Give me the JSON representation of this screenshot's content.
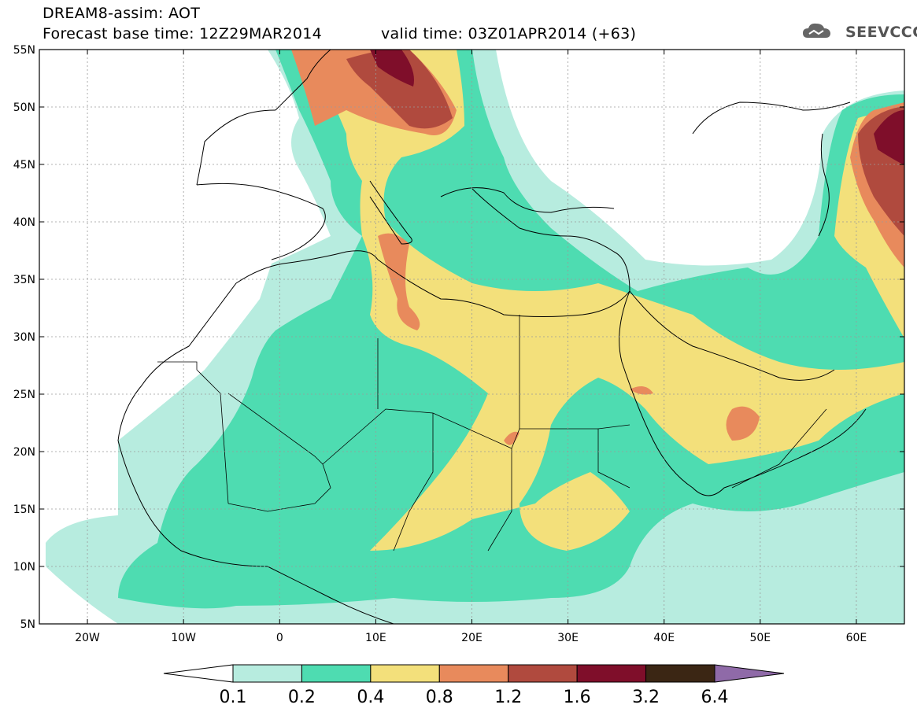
{
  "title": {
    "line1": "DREAM8-assim: AOT",
    "line2": "Forecast base time: 12Z29MAR2014",
    "valid": "valid time: 03Z01APR2014 (+63)"
  },
  "logo": {
    "text": "SEEVCCC",
    "icon": "cloud-icon"
  },
  "axes": {
    "lat_labels": [
      "55N",
      "50N",
      "45N",
      "40N",
      "35N",
      "30N",
      "25N",
      "20N",
      "15N",
      "10N",
      "5N"
    ],
    "lon_labels": [
      "20W",
      "10W",
      "0",
      "10E",
      "20E",
      "30E",
      "40E",
      "50E",
      "60E"
    ],
    "lat_range": [
      5,
      55
    ],
    "lon_range": [
      -25,
      65
    ]
  },
  "colorbar": {
    "labels": [
      "0.1",
      "0.2",
      "0.4",
      "0.8",
      "1.2",
      "1.6",
      "3.2",
      "6.4"
    ],
    "colors": [
      "#ffffff",
      "#b7ecdf",
      "#4edcb1",
      "#f3e07b",
      "#e88a5c",
      "#b04a3e",
      "#7f0e2a",
      "#3b2614",
      "#8f6aa8"
    ]
  }
}
